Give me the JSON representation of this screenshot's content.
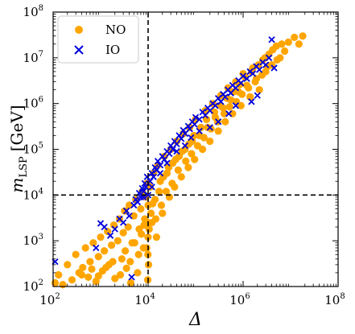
{
  "chart_data": {
    "type": "scatter",
    "xlabel": "Δ",
    "ylabel": "m_LSP [GeV]",
    "xlabel_text": "Δ",
    "ylabel_main": "m",
    "ylabel_sub": "LSP",
    "ylabel_unit": "[GeV]",
    "xscale": "log",
    "yscale": "log",
    "xlim": [
      100,
      100000000
    ],
    "ylim": [
      100,
      100000000
    ],
    "x_ticks": [
      {
        "base": "10",
        "exp": "2",
        "value": 100
      },
      {
        "base": "10",
        "exp": "4",
        "value": 10000
      },
      {
        "base": "10",
        "exp": "6",
        "value": 1000000
      },
      {
        "base": "10",
        "exp": "8",
        "value": 100000000
      }
    ],
    "y_ticks": [
      {
        "base": "10",
        "exp": "2",
        "value": 100
      },
      {
        "base": "10",
        "exp": "3",
        "value": 1000
      },
      {
        "base": "10",
        "exp": "4",
        "value": 10000
      },
      {
        "base": "10",
        "exp": "5",
        "value": 100000
      },
      {
        "base": "10",
        "exp": "6",
        "value": 1000000
      },
      {
        "base": "10",
        "exp": "7",
        "value": 10000000
      },
      {
        "base": "10",
        "exp": "8",
        "value": 100000000
      }
    ],
    "reference_lines": {
      "x": 10000,
      "y": 10000,
      "style": "dashed",
      "color": "#000000"
    },
    "legend_position": "top-left",
    "grid": false,
    "series": [
      {
        "name": "NO",
        "marker": "circle",
        "color": "#FFA500",
        "points": [
          [
            110,
            120
          ],
          [
            130,
            180
          ],
          [
            160,
            110
          ],
          [
            200,
            300
          ],
          [
            250,
            140
          ],
          [
            300,
            500
          ],
          [
            350,
            200
          ],
          [
            420,
            260
          ],
          [
            480,
            700
          ],
          [
            550,
            160
          ],
          [
            600,
            350
          ],
          [
            700,
            900
          ],
          [
            800,
            130
          ],
          [
            900,
            450
          ],
          [
            1000,
            1200
          ],
          [
            1100,
            220
          ],
          [
            1200,
            600
          ],
          [
            1400,
            1600
          ],
          [
            1500,
            300
          ],
          [
            1700,
            800
          ],
          [
            1900,
            2200
          ],
          [
            2000,
            150
          ],
          [
            2300,
            1000
          ],
          [
            2500,
            3000
          ],
          [
            2800,
            400
          ],
          [
            3000,
            1500
          ],
          [
            3200,
            4500
          ],
          [
            3500,
            250
          ],
          [
            3800,
            2000
          ],
          [
            4000,
            6000
          ],
          [
            4300,
            120
          ],
          [
            4600,
            900
          ],
          [
            5000,
            3500
          ],
          [
            5500,
            8000
          ],
          [
            6000,
            200
          ],
          [
            6500,
            1800
          ],
          [
            7000,
            5000
          ],
          [
            7500,
            12000
          ],
          [
            8000,
            700
          ],
          [
            8500,
            3000
          ],
          [
            9000,
            9000
          ],
          [
            9500,
            18000
          ],
          [
            9800,
            140
          ],
          [
            9900,
            500
          ],
          [
            9950,
            1200
          ],
          [
            9990,
            2500
          ],
          [
            10000,
            6000
          ],
          [
            10200,
            300
          ],
          [
            11000,
            15000
          ],
          [
            12000,
            2500
          ],
          [
            13000,
            30000
          ],
          [
            14000,
            8000
          ],
          [
            15000,
            1200
          ],
          [
            16000,
            45000
          ],
          [
            18000,
            20000
          ],
          [
            20000,
            4000
          ],
          [
            22000,
            70000
          ],
          [
            25000,
            30000
          ],
          [
            28000,
            9000
          ],
          [
            30000,
            100000
          ],
          [
            33000,
            50000
          ],
          [
            36000,
            15000
          ],
          [
            40000,
            150000
          ],
          [
            45000,
            70000
          ],
          [
            50000,
            25000
          ],
          [
            55000,
            220000
          ],
          [
            60000,
            100000
          ],
          [
            70000,
            40000
          ],
          [
            75000,
            300000
          ],
          [
            85000,
            150000
          ],
          [
            95000,
            60000
          ],
          [
            100000,
            450000
          ],
          [
            120000,
            200000
          ],
          [
            140000,
            100000
          ],
          [
            160000,
            700000
          ],
          [
            180000,
            300000
          ],
          [
            200000,
            150000
          ],
          [
            230000,
            1000000
          ],
          [
            260000,
            500000
          ],
          [
            300000,
            250000
          ],
          [
            340000,
            1500000
          ],
          [
            380000,
            800000
          ],
          [
            420000,
            400000
          ],
          [
            480000,
            2200000
          ],
          [
            550000,
            1200000
          ],
          [
            600000,
            600000
          ],
          [
            700000,
            3000000
          ],
          [
            800000,
            1800000
          ],
          [
            900000,
            900000
          ],
          [
            1000000,
            4500000
          ],
          [
            1200000,
            2500000
          ],
          [
            1400000,
            1400000
          ],
          [
            1600000,
            6000000
          ],
          [
            1900000,
            3500000
          ],
          [
            2200000,
            2000000
          ],
          [
            2600000,
            9000000
          ],
          [
            3000000,
            5000000
          ],
          [
            3500000,
            12000000
          ],
          [
            4000000,
            7000000
          ],
          [
            5000000,
            18000000
          ],
          [
            6000000,
            10000000
          ],
          [
            7500000,
            14000000
          ],
          [
            9000000,
            22000000
          ],
          [
            12000000,
            28000000
          ],
          [
            15000000,
            20000000
          ],
          [
            18000000,
            30000000
          ],
          [
            400,
            180
          ],
          [
            650,
            240
          ],
          [
            900,
            170
          ],
          [
            1300,
            260
          ],
          [
            1800,
            350
          ],
          [
            2600,
            180
          ],
          [
            3300,
            600
          ],
          [
            4200,
            350
          ],
          [
            5200,
            900
          ],
          [
            6300,
            500
          ],
          [
            7200,
            1400
          ],
          [
            8200,
            2200
          ],
          [
            9300,
            700
          ],
          [
            10500,
            1800
          ],
          [
            11500,
            4000
          ],
          [
            12500,
            6500
          ],
          [
            14500,
            3000
          ],
          [
            17000,
            12000
          ],
          [
            19000,
            6000
          ],
          [
            21000,
            25000
          ],
          [
            24000,
            12000
          ],
          [
            27000,
            40000
          ],
          [
            32000,
            18000
          ],
          [
            38000,
            60000
          ],
          [
            43000,
            35000
          ],
          [
            52000,
            90000
          ],
          [
            62000,
            55000
          ],
          [
            72000,
            130000
          ],
          [
            82000,
            80000
          ],
          [
            92000,
            200000
          ],
          [
            110000,
            120000
          ],
          [
            130000,
            300000
          ],
          [
            150000,
            180000
          ],
          [
            170000,
            450000
          ],
          [
            210000,
            280000
          ],
          [
            250000,
            650000
          ],
          [
            290000,
            400000
          ],
          [
            330000,
            900000
          ],
          [
            400000,
            600000
          ],
          [
            460000,
            1300000
          ],
          [
            520000,
            850000
          ],
          [
            620000,
            1800000
          ],
          [
            720000,
            1100000
          ],
          [
            850000,
            2600000
          ],
          [
            950000,
            1600000
          ],
          [
            1100000,
            3800000
          ],
          [
            1300000,
            2200000
          ],
          [
            1500000,
            5000000
          ],
          [
            1800000,
            3000000
          ],
          [
            2100000,
            7000000
          ],
          [
            2500000,
            4200000
          ],
          [
            2900000,
            10000000
          ],
          [
            3300000,
            6500000
          ],
          [
            4200000,
            15000000
          ],
          [
            5200000,
            9000000
          ],
          [
            6500000,
            20000000
          ]
        ]
      },
      {
        "name": "IO",
        "marker": "x",
        "color": "#0000DD",
        "points": [
          [
            110,
            350
          ],
          [
            800,
            700
          ],
          [
            1000,
            2400
          ],
          [
            1200,
            2000
          ],
          [
            1600,
            1300
          ],
          [
            2000,
            1800
          ],
          [
            2500,
            3000
          ],
          [
            3000,
            2500
          ],
          [
            3500,
            4500
          ],
          [
            4000,
            3500
          ],
          [
            4500,
            160
          ],
          [
            5000,
            6000
          ],
          [
            5500,
            8000
          ],
          [
            6000,
            7000
          ],
          [
            6500,
            11000
          ],
          [
            7000,
            9000
          ],
          [
            7500,
            14000
          ],
          [
            8000,
            12000
          ],
          [
            8500,
            18000
          ],
          [
            9000,
            15000
          ],
          [
            9500,
            25000
          ],
          [
            10000,
            10000
          ],
          [
            11000,
            20000
          ],
          [
            12000,
            30000
          ],
          [
            13000,
            25000
          ],
          [
            14000,
            40000
          ],
          [
            15000,
            35000
          ],
          [
            16000,
            55000
          ],
          [
            18000,
            45000
          ],
          [
            20000,
            70000
          ],
          [
            22000,
            60000
          ],
          [
            25000,
            90000
          ],
          [
            28000,
            80000
          ],
          [
            30000,
            120000
          ],
          [
            33000,
            100000
          ],
          [
            36000,
            150000
          ],
          [
            40000,
            130000
          ],
          [
            45000,
            200000
          ],
          [
            50000,
            170000
          ],
          [
            55000,
            260000
          ],
          [
            60000,
            220000
          ],
          [
            70000,
            320000
          ],
          [
            75000,
            280000
          ],
          [
            85000,
            400000
          ],
          [
            95000,
            350000
          ],
          [
            100000,
            500000
          ],
          [
            120000,
            450000
          ],
          [
            140000,
            650000
          ],
          [
            160000,
            550000
          ],
          [
            180000,
            800000
          ],
          [
            200000,
            700000
          ],
          [
            230000,
            1000000
          ],
          [
            260000,
            900000
          ],
          [
            300000,
            1300000
          ],
          [
            340000,
            1100000
          ],
          [
            380000,
            1600000
          ],
          [
            420000,
            1400000
          ],
          [
            480000,
            2000000
          ],
          [
            550000,
            1700000
          ],
          [
            600000,
            2500000
          ],
          [
            700000,
            2200000
          ],
          [
            800000,
            3200000
          ],
          [
            900000,
            2800000
          ],
          [
            1000000,
            4000000
          ],
          [
            1200000,
            3500000
          ],
          [
            1400000,
            5000000
          ],
          [
            1600000,
            4500000
          ],
          [
            1900000,
            6500000
          ],
          [
            2200000,
            5500000
          ],
          [
            2600000,
            8000000
          ],
          [
            3000000,
            7000000
          ],
          [
            3500000,
            10000000
          ],
          [
            4000000,
            25000000
          ],
          [
            4500000,
            6000000
          ],
          [
            2000000,
            1500000
          ],
          [
            1500000,
            1100000
          ],
          [
            700000,
            900000
          ],
          [
            500000,
            600000
          ],
          [
            300000,
            400000
          ],
          [
            200000,
            300000
          ],
          [
            120000,
            250000
          ],
          [
            80000,
            180000
          ],
          [
            60000,
            120000
          ],
          [
            40000,
            90000
          ],
          [
            25000,
            50000
          ],
          [
            18000,
            30000
          ],
          [
            12000,
            15000
          ],
          [
            8000,
            9000
          ]
        ]
      }
    ]
  }
}
